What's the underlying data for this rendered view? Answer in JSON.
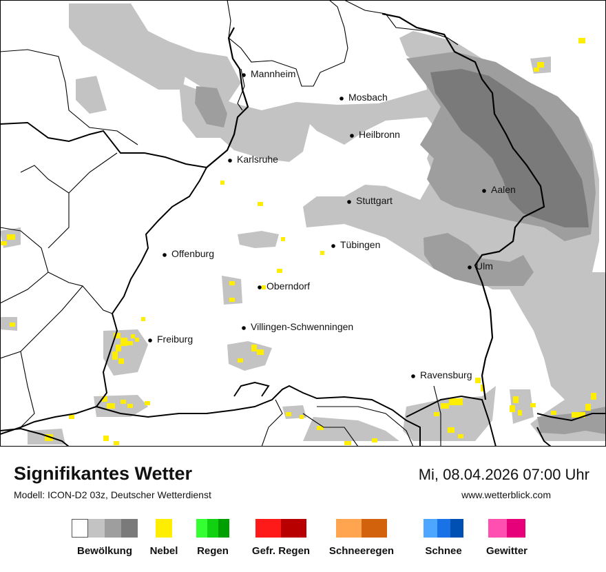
{
  "title": "Signifikantes Wetter",
  "model_info": "Modell: ICON-D2 03z, Deutscher Wetterdienst",
  "datetime": "Mi, 08.04.2026 07:00 Uhr",
  "website": "www.wetterblick.com",
  "cities": [
    {
      "name": "Mannheim"
    },
    {
      "name": "Mosbach"
    },
    {
      "name": "Heilbronn"
    },
    {
      "name": "Karlsruhe"
    },
    {
      "name": "Aalen"
    },
    {
      "name": "Stuttgart"
    },
    {
      "name": "Tübingen"
    },
    {
      "name": "Offenburg"
    },
    {
      "name": "Ulm"
    },
    {
      "name": "Oberndorf"
    },
    {
      "name": "Villingen-Schwenningen"
    },
    {
      "name": "Freiburg"
    },
    {
      "name": "Ravensburg"
    }
  ],
  "legend": [
    {
      "label": "Bewölkung",
      "colors": [
        "#ffffff",
        "#c3c3c3",
        "#9e9e9e",
        "#7a7a7a"
      ]
    },
    {
      "label": "Nebel",
      "colors": [
        "#ffee00"
      ]
    },
    {
      "label": "Regen",
      "colors": [
        "#33ff33",
        "#11d211",
        "#009f00"
      ]
    },
    {
      "label": "Gefr. Regen",
      "colors": [
        "#ff1a1a",
        "#b80000"
      ]
    },
    {
      "label": "Schneeregen",
      "colors": [
        "#ffa54f",
        "#d2620c"
      ]
    },
    {
      "label": "Schnee",
      "colors": [
        "#4da6ff",
        "#1a73e6",
        "#0050b4"
      ]
    },
    {
      "label": "Gewitter",
      "colors": [
        "#ff4fb0",
        "#e6007a"
      ]
    }
  ],
  "colors": {
    "cloud_light": "#c3c3c3",
    "cloud_medium": "#9e9e9e",
    "cloud_dark": "#7a7a7a",
    "fog": "#ffee00",
    "border": "#000000"
  }
}
